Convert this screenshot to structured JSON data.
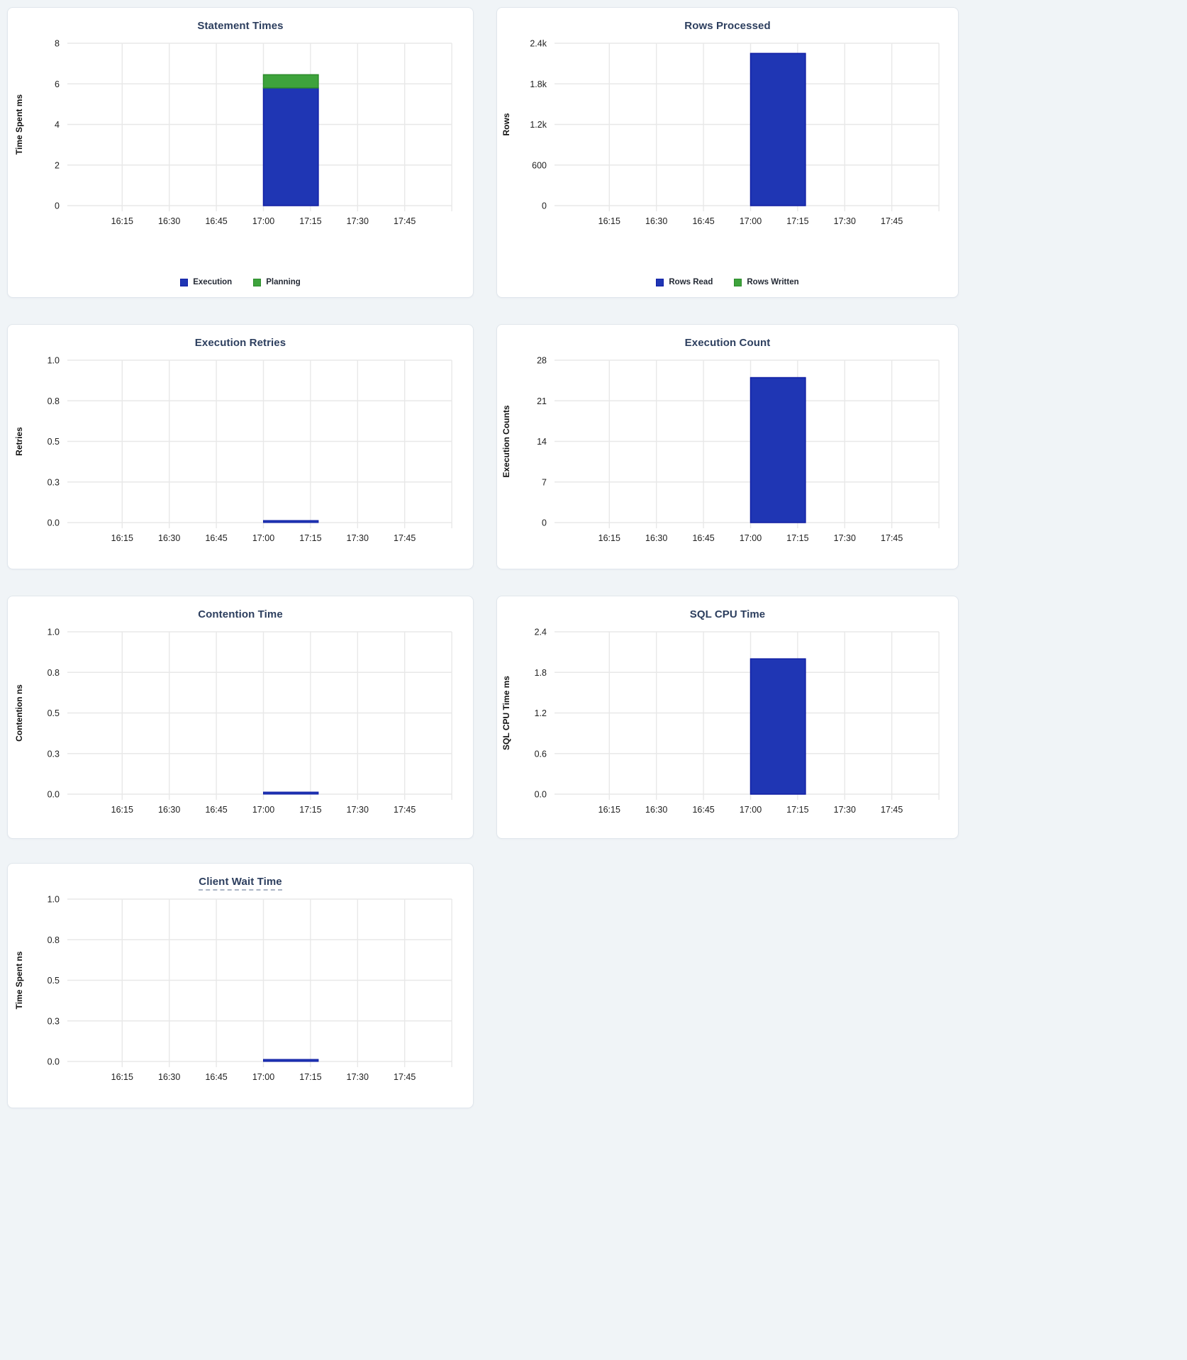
{
  "page": {
    "background_color": "#f0f4f7",
    "card_background": "#ffffff",
    "grid_color": "#e8e8e8",
    "title_color": "#2c3e5e",
    "tick_text_color": "#212121"
  },
  "chart_data": [
    {
      "type": "bar",
      "title": "Statement Times",
      "ylabel": "Time Spent ms",
      "ymax": 8,
      "ytick_labels": [
        "8",
        "6",
        "4",
        "2",
        "0"
      ],
      "xtick_labels": [
        "16:15",
        "16:30",
        "16:45",
        "17:00",
        "17:15",
        "17:30",
        "17:45"
      ],
      "bucket_start": "17:00",
      "bucket_end": "17:15",
      "stacked": true,
      "zero_as_line": false,
      "legend_visible": true,
      "grid": true,
      "series": [
        {
          "name": "Execution",
          "color": "#1f36b4",
          "border": "#111fa5",
          "value": 5.8
        },
        {
          "name": "Planning",
          "color": "#3ea33c",
          "border": "#2c8b2b",
          "value": 0.65
        }
      ]
    },
    {
      "type": "bar",
      "title": "Rows Processed",
      "ylabel": "Rows",
      "ymax": 2400,
      "ytick_labels": [
        "2.4k",
        "1.8k",
        "1.2k",
        "600",
        "0"
      ],
      "xtick_labels": [
        "16:15",
        "16:30",
        "16:45",
        "17:00",
        "17:15",
        "17:30",
        "17:45"
      ],
      "bucket_start": "17:00",
      "bucket_end": "17:15",
      "stacked": true,
      "zero_as_line": false,
      "legend_visible": true,
      "grid": true,
      "series": [
        {
          "name": "Rows Read",
          "color": "#1f36b4",
          "border": "#111fa5",
          "value": 2250
        },
        {
          "name": "Rows Written",
          "color": "#3ea33c",
          "border": "#2c8b2b",
          "value": 0
        }
      ]
    },
    {
      "type": "bar",
      "title": "Execution Retries",
      "ylabel": "Retries",
      "ymax": 1.0,
      "ytick_labels": [
        "1.0",
        "0.8",
        "0.5",
        "0.3",
        "0.0"
      ],
      "xtick_labels": [
        "16:15",
        "16:30",
        "16:45",
        "17:00",
        "17:15",
        "17:30",
        "17:45"
      ],
      "bucket_start": "17:00",
      "bucket_end": "17:15",
      "stacked": false,
      "zero_as_line": true,
      "legend_visible": false,
      "grid": true,
      "series": [
        {
          "color": "#1f36b4",
          "border": "#111fa5",
          "value": 0
        }
      ]
    },
    {
      "type": "bar",
      "title": "Execution Count",
      "ylabel": "Execution Counts",
      "ymax": 28,
      "ytick_labels": [
        "28",
        "21",
        "14",
        "7",
        "0"
      ],
      "xtick_labels": [
        "16:15",
        "16:30",
        "16:45",
        "17:00",
        "17:15",
        "17:30",
        "17:45"
      ],
      "bucket_start": "17:00",
      "bucket_end": "17:15",
      "stacked": false,
      "zero_as_line": false,
      "legend_visible": false,
      "grid": true,
      "series": [
        {
          "color": "#1f36b4",
          "border": "#111fa5",
          "value": 25
        }
      ]
    },
    {
      "type": "bar",
      "title": "Contention Time",
      "ylabel": "Contention ns",
      "ymax": 1.0,
      "ytick_labels": [
        "1.0",
        "0.8",
        "0.5",
        "0.3",
        "0.0"
      ],
      "xtick_labels": [
        "16:15",
        "16:30",
        "16:45",
        "17:00",
        "17:15",
        "17:30",
        "17:45"
      ],
      "bucket_start": "17:00",
      "bucket_end": "17:15",
      "stacked": false,
      "zero_as_line": true,
      "legend_visible": false,
      "grid": true,
      "series": [
        {
          "color": "#1f36b4",
          "border": "#111fa5",
          "value": 0
        }
      ]
    },
    {
      "type": "bar",
      "title": "SQL CPU Time",
      "ylabel": "SQL CPU Time ms",
      "ymax": 2.4,
      "ytick_labels": [
        "2.4",
        "1.8",
        "1.2",
        "0.6",
        "0.0"
      ],
      "xtick_labels": [
        "16:15",
        "16:30",
        "16:45",
        "17:00",
        "17:15",
        "17:30",
        "17:45"
      ],
      "bucket_start": "17:00",
      "bucket_end": "17:15",
      "stacked": false,
      "zero_as_line": false,
      "legend_visible": false,
      "grid": true,
      "series": [
        {
          "color": "#1f36b4",
          "border": "#111fa5",
          "value": 2.0
        }
      ]
    },
    {
      "type": "bar",
      "title": "Client Wait Time",
      "ylabel": "Time Spent ns",
      "ymax": 1.0,
      "ytick_labels": [
        "1.0",
        "0.8",
        "0.5",
        "0.3",
        "0.0"
      ],
      "xtick_labels": [
        "16:15",
        "16:30",
        "16:45",
        "17:00",
        "17:15",
        "17:30",
        "17:45"
      ],
      "bucket_start": "17:00",
      "bucket_end": "17:15",
      "stacked": false,
      "zero_as_line": true,
      "legend_visible": false,
      "grid": true,
      "series": [
        {
          "color": "#1f36b4",
          "border": "#111fa5",
          "value": 0
        }
      ]
    }
  ]
}
